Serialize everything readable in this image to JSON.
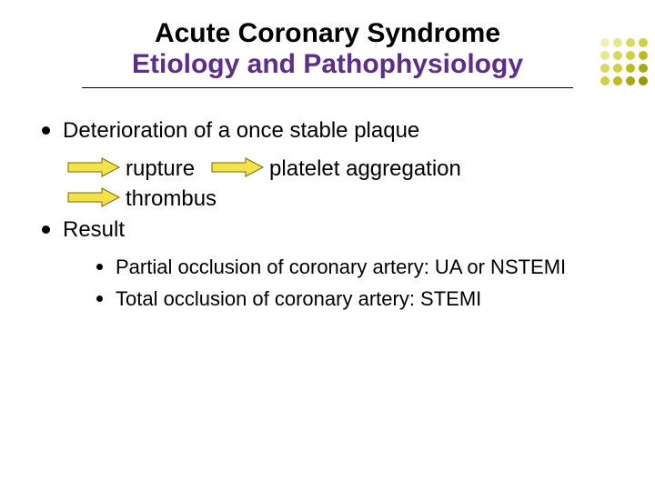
{
  "title": {
    "main": "Acute Coronary Syndrome",
    "sub": "Etiology and Pathophysiology",
    "main_color": "#000000",
    "sub_color": "#5e2b8f",
    "main_fontsize": 30,
    "sub_fontsize": 30,
    "rule_color": "#000000",
    "rule_width": 540,
    "rule_height": 1
  },
  "decoration": {
    "dot_colors_rows": [
      [
        "#f0f0b8",
        "#e6e690",
        "#d8d860",
        "#cfcf40"
      ],
      [
        "#e6e690",
        "#d8d860",
        "#cfcf40",
        "#bcbc20"
      ],
      [
        "#d8d860",
        "#cfcf40",
        "#bcbc20",
        "#a8a810"
      ],
      [
        "#cfcf40",
        "#bcbc20",
        "#a8a810",
        "#989800"
      ]
    ]
  },
  "body": {
    "fontsize": 24,
    "text_color": "#000000",
    "bullet_color": "#000000",
    "bullets_level1": [
      "Deterioration of a once stable plaque"
    ],
    "flow": {
      "segments": [
        "rupture",
        "platelet aggregation",
        "thrombus"
      ],
      "arrow": {
        "fill": "#f3e24a",
        "stroke": "#7a6a00",
        "width": 58,
        "height": 22
      }
    },
    "bullets_level1_after": [
      "Result"
    ],
    "sub_bullets": [
      "Partial occlusion of coronary artery: UA or NSTEMI",
      "Total occlusion of coronary artery: STEMI"
    ],
    "sub_fontsize": 22
  },
  "background_color": "#ffffff"
}
